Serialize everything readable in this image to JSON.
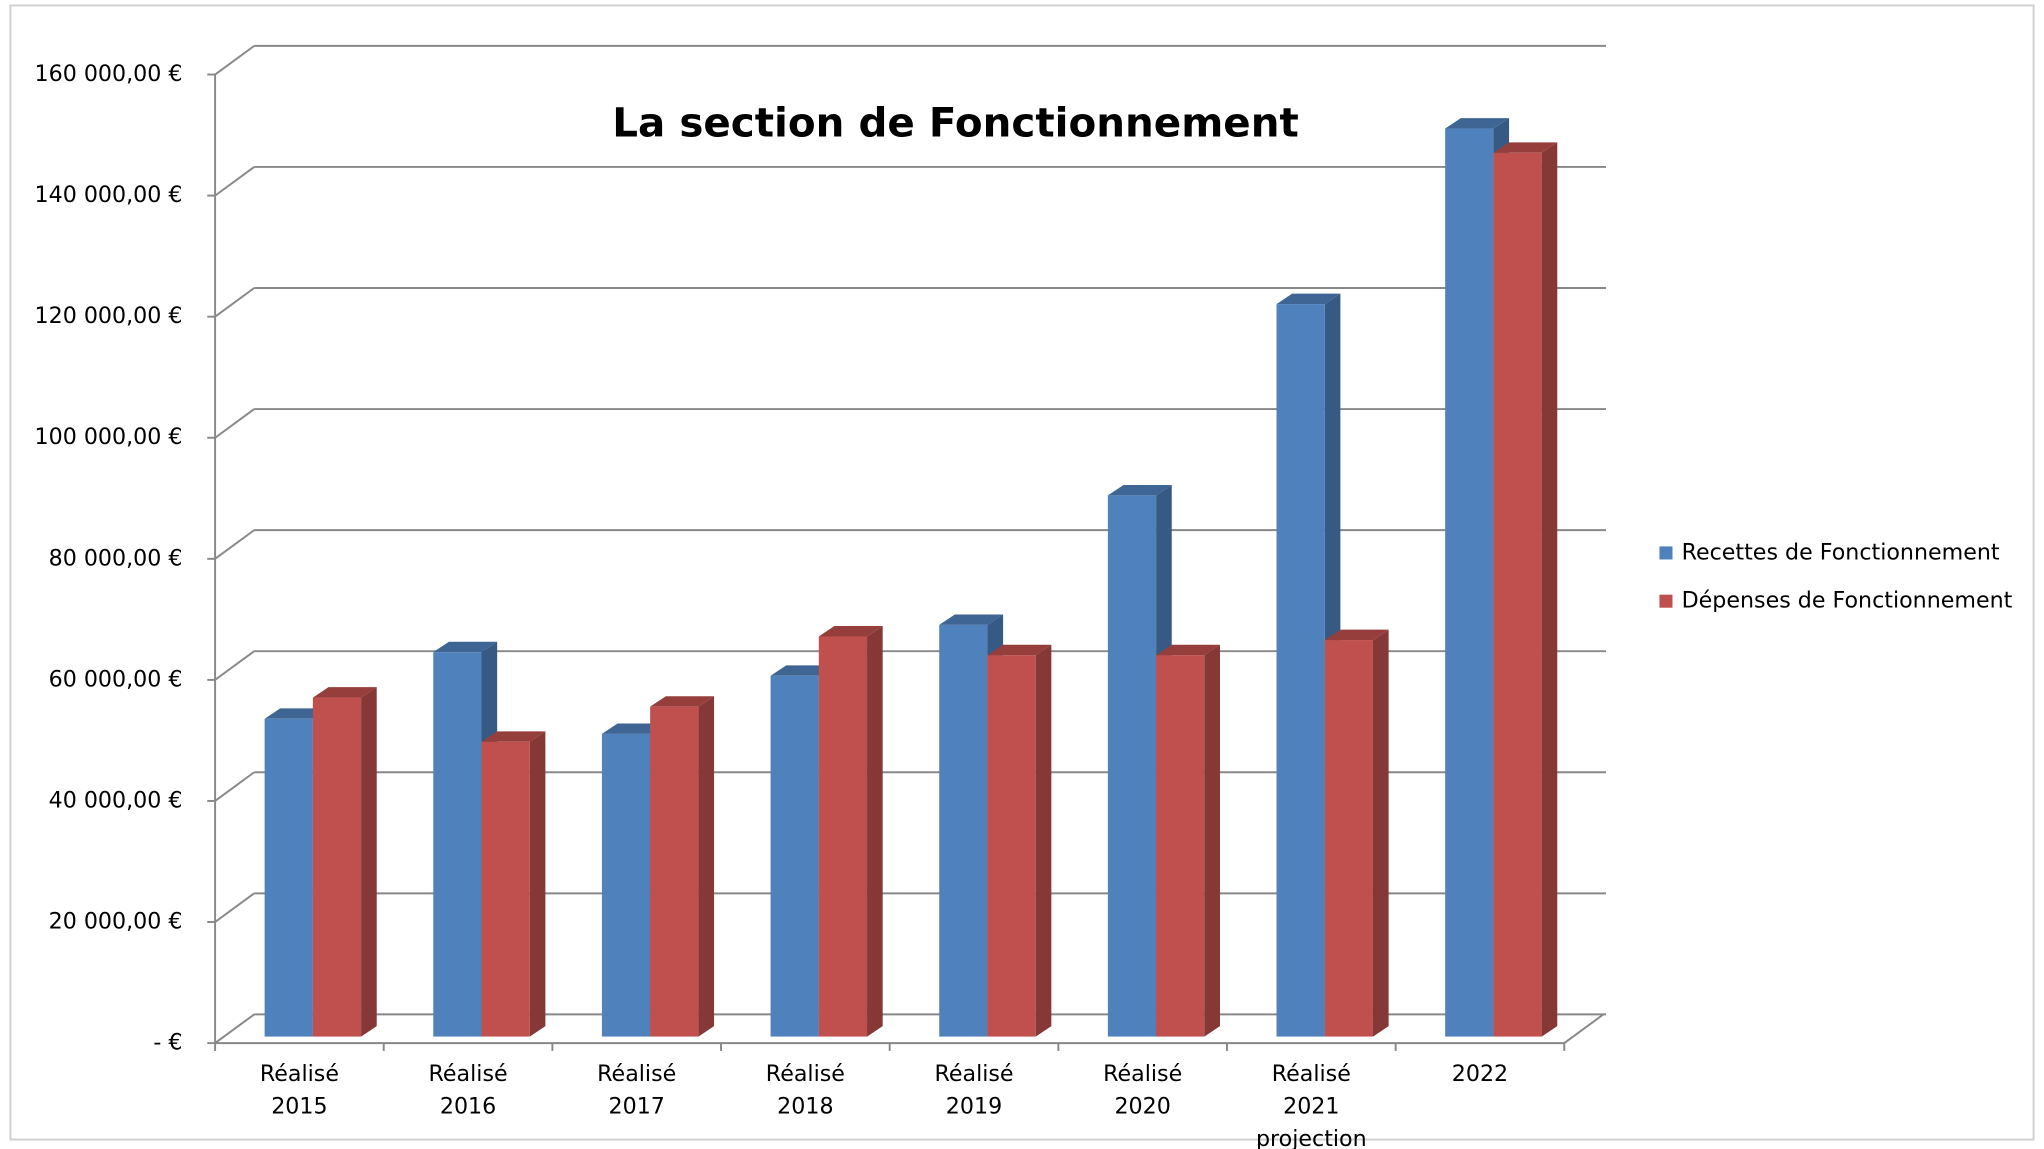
{
  "chart_data": {
    "type": "bar3d",
    "title": "La section de Fonctionnement",
    "categories": [
      "Réalisé 2015",
      "Réalisé 2016",
      "Réalisé 2017",
      "Réalisé 2018",
      "Réalisé 2019",
      "Réalisé 2020",
      "Réalisé 2021 projection",
      "2022"
    ],
    "series": [
      {
        "name": "Recettes de Fonctionnement",
        "color": "#4f81bd",
        "values": [
          52500,
          63500,
          50000,
          59600,
          68000,
          89400,
          121000,
          150000
        ]
      },
      {
        "name": "Dépenses de Fonctionnement",
        "color": "#c0504d",
        "values": [
          56000,
          48700,
          54500,
          66100,
          63000,
          63000,
          65500,
          146000
        ]
      }
    ],
    "ylim": [
      0,
      160000
    ],
    "yticks": [
      {
        "value": 0,
        "label": "-  €"
      },
      {
        "value": 20000,
        "label": "20 000,00 €"
      },
      {
        "value": 40000,
        "label": "40 000,00 €"
      },
      {
        "value": 60000,
        "label": "60 000,00 €"
      },
      {
        "value": 80000,
        "label": "80 000,00 €"
      },
      {
        "value": 100000,
        "label": "100 000,00 €"
      },
      {
        "value": 120000,
        "label": "120 000,00 €"
      },
      {
        "value": 140000,
        "label": "140 000,00 €"
      },
      {
        "value": 160000,
        "label": "160 000,00 €"
      }
    ],
    "grid": true,
    "legend": "right"
  }
}
